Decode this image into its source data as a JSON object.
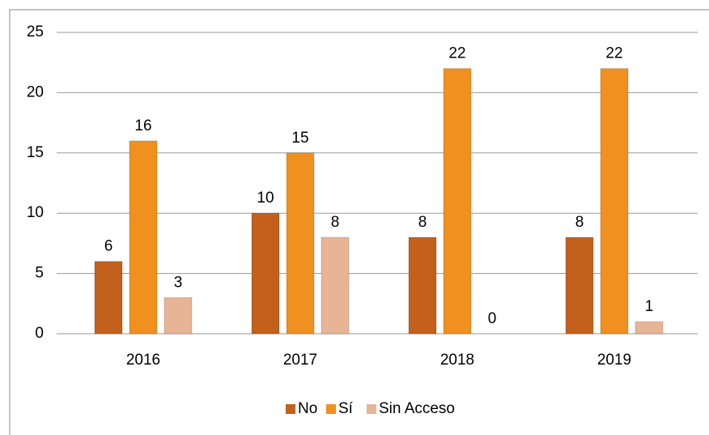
{
  "chart_data": {
    "type": "bar",
    "categories": [
      "2016",
      "2017",
      "2018",
      "2019"
    ],
    "series": [
      {
        "name": "No",
        "color": "#c2601c",
        "values": [
          6,
          10,
          8,
          8
        ]
      },
      {
        "name": "Sí",
        "color": "#f0901f",
        "values": [
          16,
          15,
          22,
          22
        ]
      },
      {
        "name": "Sin Acceso",
        "color": "#e8b496",
        "values": [
          3,
          8,
          0,
          1
        ]
      }
    ],
    "ylim": [
      0,
      25
    ],
    "yticks": [
      0,
      5,
      10,
      15,
      20,
      25
    ],
    "grid": true,
    "legend": "bottom"
  }
}
